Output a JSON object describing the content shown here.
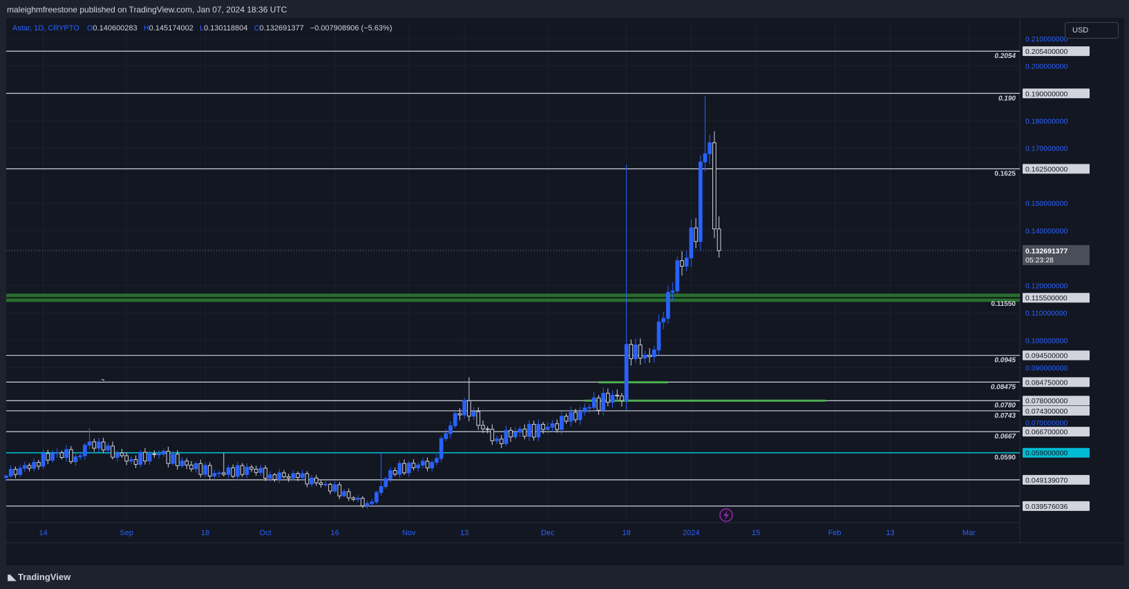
{
  "header": {
    "published": "maleighmfreestone published on TradingView.com, Jan 07, 2024 18:36 UTC"
  },
  "legend": {
    "symbol": "Astar, 1D, CRYPTO",
    "o_label": "O",
    "o": "0.140600283",
    "h_label": "H",
    "h": "0.145174002",
    "l_label": "L",
    "l": "0.130118804",
    "c_label": "C",
    "c": "0.132691377",
    "change": "−0.007908906 (−5.63%)"
  },
  "currency_button": "USD",
  "footer": {
    "logo_text": "TradingView"
  },
  "colors": {
    "background": "#131722",
    "grid": "#1c2030",
    "up": "#2962ff",
    "down": "#d1d4dc",
    "level": "#d1d4dc",
    "support_zone": "#2e7d32",
    "cyan_level": "#00bcd4",
    "accent": "#2962ff"
  },
  "chart_data": {
    "type": "candlestick",
    "title": "",
    "ylim": [
      0.0335,
      0.2165
    ],
    "y_ticks": [
      "0.210000000",
      "0.200000000",
      "0.180000000",
      "0.170000000",
      "0.150000000",
      "0.140000000",
      "0.120000000",
      "0.110000000",
      "0.100000000",
      "0.090000000",
      "0.070000000"
    ],
    "y_tick_values": [
      0.21,
      0.2,
      0.18,
      0.17,
      0.15,
      0.14,
      0.12,
      0.11,
      0.1,
      0.09,
      0.07
    ],
    "x_ticks": [
      "14",
      "Sep",
      "18",
      "Oct",
      "16",
      "Nov",
      "13",
      "Dec",
      "18",
      "2024",
      "15",
      "Feb",
      "13",
      "Mar"
    ],
    "x_tick_dates": [
      "2023-08-14",
      "2023-09-01",
      "2023-09-18",
      "2023-10-01",
      "2023-10-16",
      "2023-11-01",
      "2023-11-13",
      "2023-12-01",
      "2023-12-18",
      "2024-01-01",
      "2024-01-15",
      "2024-02-01",
      "2024-02-13",
      "2024-03-01"
    ],
    "date_range": [
      "2023-08-06",
      "2024-03-12"
    ],
    "price_levels": [
      {
        "value": 0.2054,
        "axis_label": "0.205400000",
        "chart_label": "0.2054",
        "style": "white"
      },
      {
        "value": 0.19,
        "axis_label": "0.190000000",
        "chart_label": "0.190",
        "style": "white"
      },
      {
        "value": 0.1625,
        "axis_label": "0.162500000",
        "chart_label": "0.1625",
        "style": "white"
      },
      {
        "value": 0.1155,
        "axis_label": "0.115500000",
        "chart_label": "0.11550",
        "style": "green-zone"
      },
      {
        "value": 0.0945,
        "axis_label": "0.094500000",
        "chart_label": "0.0945",
        "style": "white"
      },
      {
        "value": 0.08475,
        "axis_label": "0.084750000",
        "chart_label": "0.08475",
        "style": "white"
      },
      {
        "value": 0.078,
        "axis_label": "0.078000000",
        "chart_label": "0.0780",
        "style": "white"
      },
      {
        "value": 0.0743,
        "axis_label": "0.074300000",
        "chart_label": "0.0743",
        "style": "white"
      },
      {
        "value": 0.0667,
        "axis_label": "0.066700000",
        "chart_label": "0.0667",
        "style": "white"
      },
      {
        "value": 0.059,
        "axis_label": "0.059000000",
        "chart_label": "0.0590",
        "style": "cyan"
      },
      {
        "value": 0.04913907,
        "axis_label": "0.049139070",
        "chart_label": "",
        "style": "white"
      },
      {
        "value": 0.039576036,
        "axis_label": "0.039576036",
        "chart_label": "",
        "style": "white"
      }
    ],
    "current_price": {
      "value": 0.132691377,
      "label": "0.132691377",
      "countdown": "05:23:28"
    },
    "green_segments": [
      {
        "value": 0.0847,
        "from": "2023-12-12",
        "to": "2023-12-27"
      },
      {
        "value": 0.078,
        "from": "2023-12-09",
        "to": "2024-01-30"
      }
    ],
    "anchors": [
      {
        "date": "2023-08-06",
        "close": 0.0505
      },
      {
        "date": "2023-08-12",
        "close": 0.0555
      },
      {
        "date": "2023-08-17",
        "close": 0.059
      },
      {
        "date": "2023-08-21",
        "close": 0.0575
      },
      {
        "date": "2023-08-24",
        "close": 0.063
      },
      {
        "date": "2023-08-27",
        "close": 0.06
      },
      {
        "date": "2023-09-02",
        "close": 0.0565
      },
      {
        "date": "2023-09-08",
        "close": 0.0585
      },
      {
        "date": "2023-09-14",
        "close": 0.0545
      },
      {
        "date": "2023-09-20",
        "close": 0.0515
      },
      {
        "date": "2023-09-28",
        "close": 0.053
      },
      {
        "date": "2023-10-02",
        "close": 0.051
      },
      {
        "date": "2023-10-08",
        "close": 0.05
      },
      {
        "date": "2023-10-14",
        "close": 0.0475
      },
      {
        "date": "2023-10-20",
        "close": 0.042
      },
      {
        "date": "2023-10-23",
        "close": 0.0405
      },
      {
        "date": "2023-10-25",
        "close": 0.0445
      },
      {
        "date": "2023-10-28",
        "close": 0.0525
      },
      {
        "date": "2023-11-03",
        "close": 0.0545
      },
      {
        "date": "2023-11-06",
        "close": 0.0555
      },
      {
        "date": "2023-11-09",
        "close": 0.066
      },
      {
        "date": "2023-11-13",
        "close": 0.078
      },
      {
        "date": "2023-11-16",
        "close": 0.069
      },
      {
        "date": "2023-11-20",
        "close": 0.064
      },
      {
        "date": "2023-11-24",
        "close": 0.0665
      },
      {
        "date": "2023-11-30",
        "close": 0.0675
      },
      {
        "date": "2023-12-05",
        "close": 0.0705
      },
      {
        "date": "2023-12-10",
        "close": 0.0755
      },
      {
        "date": "2023-12-15",
        "close": 0.08
      },
      {
        "date": "2023-12-17",
        "close": 0.078
      },
      {
        "date": "2023-12-18",
        "close": 0.0985
      },
      {
        "date": "2023-12-21",
        "close": 0.0935
      },
      {
        "date": "2023-12-23",
        "close": 0.094
      },
      {
        "date": "2023-12-26",
        "close": 0.108
      },
      {
        "date": "2023-12-27",
        "close": 0.1175
      },
      {
        "date": "2023-12-28",
        "close": 0.118
      },
      {
        "date": "2023-12-29",
        "close": 0.129
      },
      {
        "date": "2023-12-30",
        "close": 0.127
      },
      {
        "date": "2023-12-31",
        "close": 0.13
      },
      {
        "date": "2024-01-01",
        "close": 0.141
      },
      {
        "date": "2024-01-02",
        "close": 0.136
      },
      {
        "date": "2024-01-03",
        "close": 0.165
      },
      {
        "date": "2024-01-04",
        "close": 0.168
      },
      {
        "date": "2024-01-05",
        "close": 0.172
      },
      {
        "date": "2024-01-06",
        "close": 0.1406
      },
      {
        "date": "2024-01-07",
        "close": 0.132691377
      }
    ],
    "spikes": [
      {
        "date": "2023-12-18",
        "high": 0.164,
        "low": 0.0745
      },
      {
        "date": "2024-01-04",
        "high": 0.189
      },
      {
        "date": "2023-11-14",
        "high": 0.0865
      },
      {
        "date": "2023-10-26",
        "high": 0.059
      },
      {
        "date": "2023-08-24",
        "high": 0.068
      },
      {
        "date": "2023-09-22",
        "high": 0.059
      }
    ]
  }
}
